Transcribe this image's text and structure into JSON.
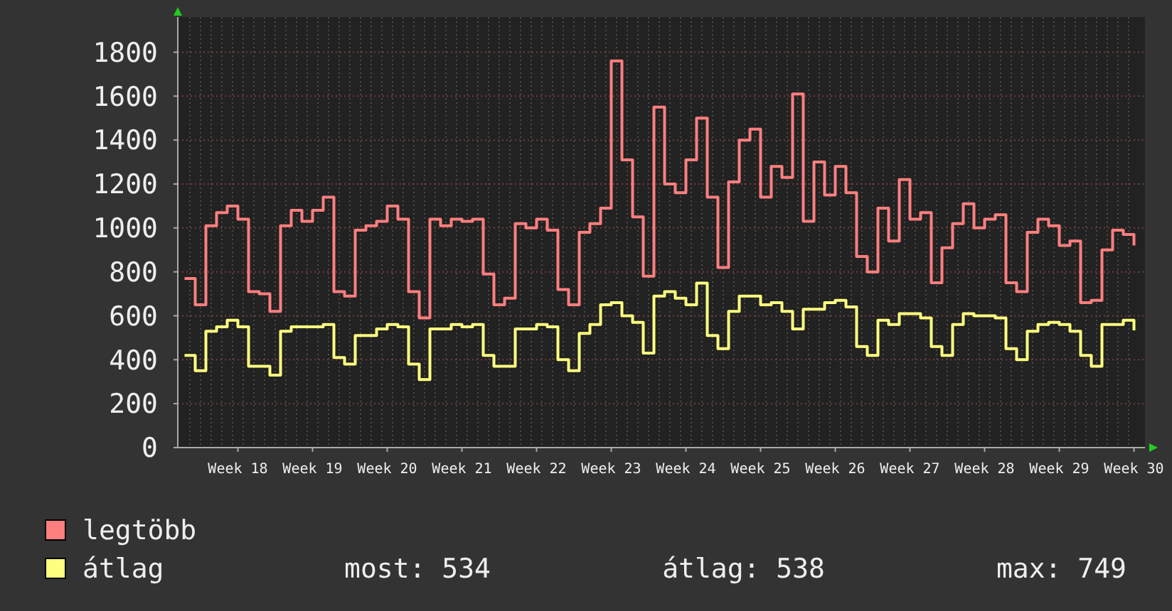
{
  "chart_data": {
    "type": "step",
    "categories": [
      null,
      null,
      null,
      null,
      null,
      "Week 18",
      null,
      null,
      null,
      null,
      null,
      null,
      "Week 19",
      null,
      null,
      null,
      null,
      null,
      null,
      "Week 20",
      null,
      null,
      null,
      null,
      null,
      null,
      "Week 21",
      null,
      null,
      null,
      null,
      null,
      null,
      "Week 22",
      null,
      null,
      null,
      null,
      null,
      null,
      "Week 23",
      null,
      null,
      null,
      null,
      null,
      null,
      "Week 24",
      null,
      null,
      null,
      null,
      null,
      null,
      "Week 25",
      null,
      null,
      null,
      null,
      null,
      null,
      "Week 26",
      null,
      null,
      null,
      null,
      null,
      null,
      "Week 27",
      null,
      null,
      null,
      null,
      null,
      null,
      "Week 28",
      null,
      null,
      null,
      null,
      null,
      null,
      "Week 29",
      null,
      null,
      null,
      null,
      null,
      null,
      "Week 30"
    ],
    "series": [
      {
        "name": "legtöbb",
        "color": "#ff7f7f",
        "values": [
          770,
          650,
          1010,
          1070,
          1100,
          1040,
          710,
          700,
          620,
          1010,
          1080,
          1030,
          1080,
          1140,
          710,
          690,
          990,
          1010,
          1030,
          1100,
          1040,
          710,
          590,
          1040,
          1010,
          1040,
          1030,
          1040,
          790,
          650,
          680,
          1020,
          1000,
          1040,
          990,
          720,
          650,
          980,
          1020,
          1090,
          1760,
          1310,
          1050,
          780,
          1550,
          1200,
          1160,
          1310,
          1500,
          1140,
          820,
          1210,
          1400,
          1450,
          1140,
          1280,
          1230,
          1610,
          1030,
          1300,
          1150,
          1280,
          1160,
          870,
          800,
          1090,
          940,
          1220,
          1040,
          1070,
          750,
          910,
          1020,
          1110,
          1000,
          1040,
          1060,
          750,
          710,
          980,
          1040,
          1010,
          920,
          940,
          660,
          670,
          900,
          990,
          970,
          920
        ]
      },
      {
        "name": "átlag",
        "color": "#ffff7f",
        "values": [
          420,
          350,
          530,
          550,
          580,
          550,
          370,
          370,
          330,
          530,
          550,
          550,
          550,
          560,
          410,
          380,
          510,
          510,
          540,
          560,
          550,
          380,
          310,
          540,
          540,
          560,
          550,
          560,
          420,
          370,
          370,
          540,
          540,
          560,
          550,
          400,
          350,
          520,
          560,
          650,
          660,
          600,
          570,
          430,
          690,
          710,
          680,
          650,
          749,
          510,
          450,
          620,
          690,
          690,
          650,
          660,
          620,
          540,
          630,
          630,
          660,
          670,
          640,
          460,
          420,
          580,
          560,
          610,
          610,
          590,
          460,
          420,
          560,
          610,
          600,
          600,
          590,
          450,
          400,
          530,
          560,
          570,
          560,
          530,
          420,
          370,
          560,
          560,
          580,
          534
        ]
      }
    ],
    "ylim": [
      0,
      1960
    ],
    "yticks": [
      0,
      200,
      400,
      600,
      800,
      1000,
      1200,
      1400,
      1600,
      1800
    ],
    "grid": true,
    "legend": "bottom",
    "annotations": [
      "most: 534",
      "átlag: 538",
      "max: 749"
    ]
  }
}
